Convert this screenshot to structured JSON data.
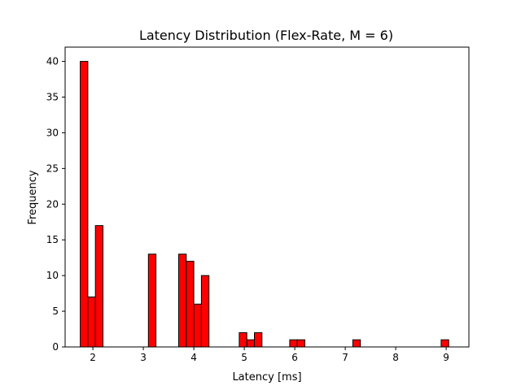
{
  "chart_data": {
    "type": "bar",
    "title": "Latency Distribution (Flex-Rate, M = 6)",
    "xlabel": "Latency [ms]",
    "ylabel": "Frequency",
    "xlim": [
      1.45,
      9.45
    ],
    "ylim": [
      0,
      42
    ],
    "xticks": [
      2,
      3,
      4,
      5,
      6,
      7,
      8,
      9
    ],
    "yticks": [
      0,
      5,
      10,
      15,
      20,
      25,
      30,
      35,
      40
    ],
    "bin_width": 0.15,
    "bins": [
      {
        "x0": 1.75,
        "count": 40
      },
      {
        "x0": 1.9,
        "count": 7
      },
      {
        "x0": 2.05,
        "count": 17
      },
      {
        "x0": 3.1,
        "count": 13
      },
      {
        "x0": 3.7,
        "count": 13
      },
      {
        "x0": 3.85,
        "count": 12
      },
      {
        "x0": 4.0,
        "count": 6
      },
      {
        "x0": 4.15,
        "count": 10
      },
      {
        "x0": 4.9,
        "count": 2
      },
      {
        "x0": 5.05,
        "count": 1
      },
      {
        "x0": 5.2,
        "count": 2
      },
      {
        "x0": 5.9,
        "count": 1
      },
      {
        "x0": 6.05,
        "count": 1
      },
      {
        "x0": 7.15,
        "count": 1
      },
      {
        "x0": 8.9,
        "count": 1
      }
    ],
    "bar_color": "#ff0000",
    "edge_color": "#000000",
    "grid": false,
    "legend": "none"
  }
}
